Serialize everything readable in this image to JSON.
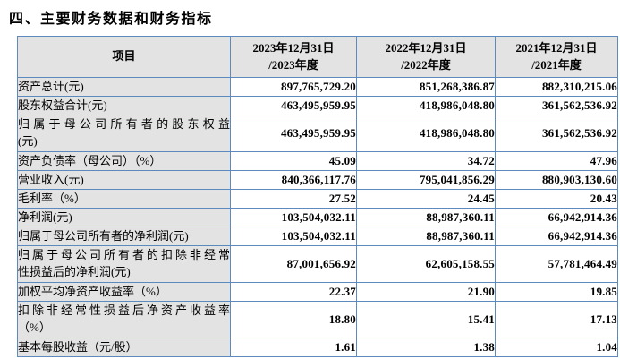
{
  "page": {
    "title": "四、主要财务数据和财务指标"
  },
  "colors": {
    "header_bg": "#e3e3e3",
    "border": "#5d89bd",
    "text": "#000000"
  },
  "table": {
    "item_header": "项目",
    "columns": [
      {
        "line1": "2023年12月31日",
        "line2": "/2023年度"
      },
      {
        "line1": "2022年12月31日",
        "line2": "/2022年度"
      },
      {
        "line1": "2021年12月31日",
        "line2": "/2021年度"
      }
    ],
    "rows": [
      {
        "label_lines": [
          "资产总计(元)"
        ],
        "values": [
          "897,765,729.20",
          "851,268,386.87",
          "882,310,215.06"
        ]
      },
      {
        "label_lines": [
          "股东权益合计(元)"
        ],
        "values": [
          "463,495,959.95",
          "418,986,048.80",
          "361,562,536.92"
        ]
      },
      {
        "label_lines": [
          "归属于母公司所有者的股东权益",
          "(元)"
        ],
        "values": [
          "463,495,959.95",
          "418,986,048.80",
          "361,562,536.92"
        ]
      },
      {
        "label_lines": [
          "资产负债率（母公司）（%）"
        ],
        "values": [
          "45.09",
          "34.72",
          "47.96"
        ]
      },
      {
        "label_lines": [
          "营业收入(元)"
        ],
        "values": [
          "840,366,117.76",
          "795,041,856.29",
          "880,903,130.60"
        ]
      },
      {
        "label_lines": [
          "毛利率（%）"
        ],
        "values": [
          "27.52",
          "24.45",
          "20.43"
        ]
      },
      {
        "label_lines": [
          "净利润(元)"
        ],
        "values": [
          "103,504,032.11",
          "88,987,360.11",
          "66,942,914.36"
        ]
      },
      {
        "label_lines": [
          "归属于母公司所有者的净利润(元)"
        ],
        "values": [
          "103,504,032.11",
          "88,987,360.11",
          "66,942,914.36"
        ]
      },
      {
        "label_lines": [
          "归属于母公司所有者的扣除非经常",
          "性损益后的净利润(元)"
        ],
        "values": [
          "87,001,656.92",
          "62,605,158.55",
          "57,781,464.49"
        ]
      },
      {
        "label_lines": [
          "加权平均净资产收益率（%）"
        ],
        "values": [
          "22.37",
          "21.90",
          "19.85"
        ]
      },
      {
        "label_lines": [
          "扣除非经常性损益后净资产收益率",
          "（%）"
        ],
        "values": [
          "18.80",
          "15.41",
          "17.13"
        ]
      },
      {
        "label_lines": [
          "基本每股收益（元/股）"
        ],
        "values": [
          "1.61",
          "1.38",
          "1.04"
        ]
      }
    ]
  }
}
